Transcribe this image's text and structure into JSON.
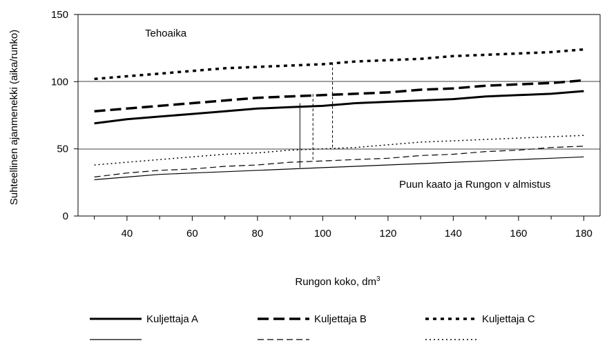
{
  "chart_data": {
    "type": "line",
    "title": "",
    "xlabel": "Rungon koko, dm",
    "xlabel_superscript": "3",
    "ylabel": "Suhteellinen ajanmenekki (aika/runko)",
    "xlim": [
      25,
      185
    ],
    "ylim": [
      0,
      150
    ],
    "x_ticks": [
      40,
      60,
      80,
      100,
      120,
      140,
      160,
      180
    ],
    "y_ticks": [
      0,
      50,
      100,
      150
    ],
    "grid": "horizontal at 50 and 100",
    "annotations": [
      "Tehoaika",
      "Puun kaato ja Rungon v almistus"
    ],
    "x": [
      30,
      40,
      50,
      60,
      70,
      80,
      90,
      100,
      110,
      120,
      130,
      140,
      150,
      160,
      170,
      180
    ],
    "series": [
      {
        "name": "Kuljettaja A",
        "group": "Tehoaika",
        "style": "solid-thick",
        "values": [
          69,
          72,
          74,
          76,
          78,
          80,
          81,
          82,
          84,
          85,
          86,
          87,
          89,
          90,
          91,
          93
        ]
      },
      {
        "name": "Kuljettaja B",
        "group": "Tehoaika",
        "style": "dash-thick",
        "values": [
          78,
          80,
          82,
          84,
          86,
          88,
          89,
          90,
          91,
          92,
          94,
          95,
          97,
          98,
          99,
          101
        ]
      },
      {
        "name": "Kuljettaja C",
        "group": "Tehoaika",
        "style": "dot-thick",
        "values": [
          102,
          104,
          106,
          108,
          110,
          111,
          112,
          113,
          115,
          116,
          117,
          119,
          120,
          121,
          122,
          124
        ]
      },
      {
        "group": "Puun kaato ja Rungon valmistus",
        "style": "solid-thin",
        "values": [
          27,
          29,
          31,
          32,
          33,
          34,
          35,
          36,
          37,
          38,
          39,
          40,
          41,
          42,
          43,
          44
        ]
      },
      {
        "group": "Puun kaato ja Rungon valmistus",
        "style": "dash-thin",
        "values": [
          29,
          32,
          34,
          35,
          37,
          38,
          40,
          41,
          42,
          43,
          45,
          46,
          48,
          49,
          51,
          52
        ]
      },
      {
        "group": "Puun kaato ja Rungon valmistus",
        "style": "dot-thin",
        "values": [
          38,
          40,
          42,
          44,
          46,
          47,
          49,
          50,
          51,
          53,
          55,
          56,
          57,
          58,
          59,
          60
        ]
      }
    ],
    "markers": [
      {
        "x": 93,
        "y_from": 36,
        "y_to": 84,
        "style": "solid"
      },
      {
        "x": 97,
        "y_from": 42,
        "y_to": 91,
        "style": "dashed"
      },
      {
        "x": 103,
        "y_from": 51,
        "y_to": 114,
        "style": "dashed"
      }
    ],
    "legend": {
      "placement": "bottom",
      "items": [
        "Kuljettaja A",
        "Kuljettaja B",
        "Kuljettaja C",
        "",
        "",
        ""
      ]
    }
  }
}
